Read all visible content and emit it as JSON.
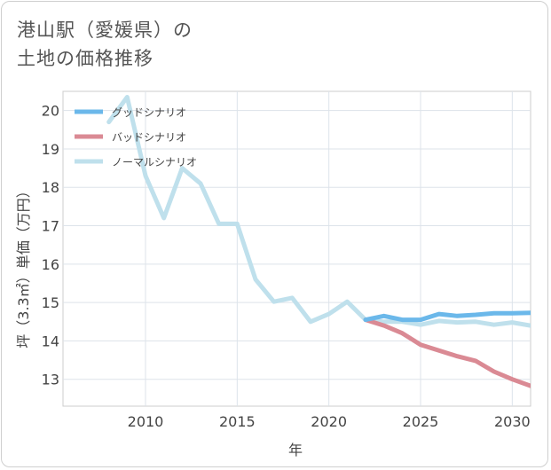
{
  "title_lines": [
    "港山駅（愛媛県）の",
    "土地の価格推移"
  ],
  "chart_data": {
    "type": "line",
    "xlabel": "年",
    "ylabel": "坪（3.3㎡）単価（万円）",
    "xlim": [
      2005.5,
      2031
    ],
    "ylim": [
      12.3,
      20.5
    ],
    "xticks": [
      2010,
      2015,
      2020,
      2025,
      2030
    ],
    "yticks": [
      13,
      14,
      15,
      16,
      17,
      18,
      19,
      20
    ],
    "grid": true,
    "legend_position": "top-left",
    "series": [
      {
        "name": "グッドシナリオ",
        "color": "#6bb8ea",
        "x": [
          2022,
          2023,
          2024,
          2025,
          2026,
          2027,
          2028,
          2029,
          2030,
          2031
        ],
        "values": [
          14.55,
          14.65,
          14.55,
          14.55,
          14.7,
          14.65,
          14.68,
          14.72,
          14.72,
          14.73
        ]
      },
      {
        "name": "バッドシナリオ",
        "color": "#da8a94",
        "x": [
          2022,
          2023,
          2024,
          2025,
          2026,
          2027,
          2028,
          2029,
          2030,
          2031
        ],
        "values": [
          14.55,
          14.4,
          14.2,
          13.9,
          13.75,
          13.6,
          13.48,
          13.2,
          13.0,
          12.83
        ]
      },
      {
        "name": "ノーマルシナリオ",
        "color": "#bfe0ec",
        "x": [
          2008,
          2009,
          2010,
          2011,
          2012,
          2013,
          2014,
          2015,
          2016,
          2017,
          2018,
          2019,
          2020,
          2021,
          2022,
          2023,
          2024,
          2025,
          2026,
          2027,
          2028,
          2029,
          2030,
          2031
        ],
        "values": [
          19.7,
          20.35,
          18.3,
          17.2,
          18.5,
          18.1,
          17.05,
          17.05,
          15.6,
          15.02,
          15.12,
          14.5,
          14.7,
          15.02,
          14.55,
          14.5,
          14.5,
          14.42,
          14.52,
          14.48,
          14.5,
          14.42,
          14.48,
          14.4
        ]
      }
    ]
  }
}
